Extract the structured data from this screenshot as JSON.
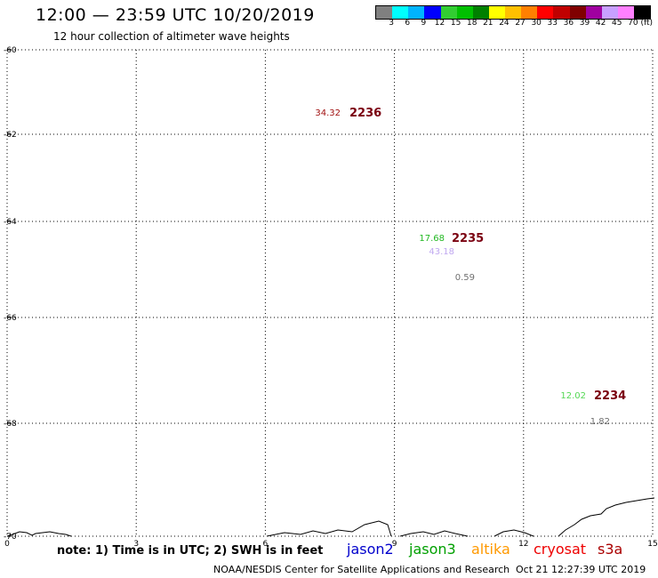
{
  "header": {
    "title": "12:00 — 23:59 UTC 10/20/2019",
    "subtitle": "12 hour collection of altimeter wave heights"
  },
  "color_scale": {
    "unit": "(ft)",
    "colors": [
      "#808080",
      "#00ffff",
      "#00b4ff",
      "#0000ff",
      "#32cd32",
      "#00c000",
      "#008000",
      "#ffff00",
      "#ffc000",
      "#ff8000",
      "#ff0000",
      "#c00000",
      "#800000",
      "#a000a0",
      "#c8a0ff",
      "#ff80ff",
      "#000000"
    ],
    "labels": [
      "3",
      "6",
      "9",
      "12",
      "15",
      "18",
      "21",
      "24",
      "27",
      "30",
      "33",
      "36",
      "39",
      "42",
      "45",
      "70"
    ]
  },
  "map": {
    "lat_labels": [
      "-60",
      "-62",
      "-64",
      "-66",
      "-68",
      "-70"
    ],
    "lon_labels": [
      "0",
      "3",
      "6",
      "9",
      "12",
      "15"
    ],
    "lon_range": [
      0,
      15
    ],
    "lat_breaks": [
      -60,
      -62,
      -64,
      -66,
      -68,
      -70
    ],
    "annotations": [
      {
        "pass": "2236",
        "value": "34.32",
        "value_color": "#a01010"
      },
      {
        "pass": "2235",
        "value": "17.68",
        "value_color": "#22b822"
      },
      {
        "pass": "",
        "value": "43.18",
        "value_color": "#c0a8f0"
      },
      {
        "pass": "",
        "value": "0.59",
        "value_color": "#707070"
      },
      {
        "pass": "2234",
        "value": "12.02",
        "value_color": "#55d855"
      },
      {
        "pass": "",
        "value": "1.82",
        "value_color": "#707070"
      }
    ]
  },
  "footer": {
    "note": "note: 1) Time is in UTC; 2) SWH is in feet",
    "satellites": [
      {
        "name": "jason2",
        "color": "#0000cc"
      },
      {
        "name": "jason3",
        "color": "#00a000"
      },
      {
        "name": "altika",
        "color": "#ff9900"
      },
      {
        "name": "cryosat",
        "color": "#ee0000"
      },
      {
        "name": "s3a",
        "color": "#aa0000"
      }
    ],
    "credit": "NOAA/NESDIS Center for Satellite Applications and Research",
    "timestamp": "Oct 21 12:27:39 UTC 2019"
  }
}
